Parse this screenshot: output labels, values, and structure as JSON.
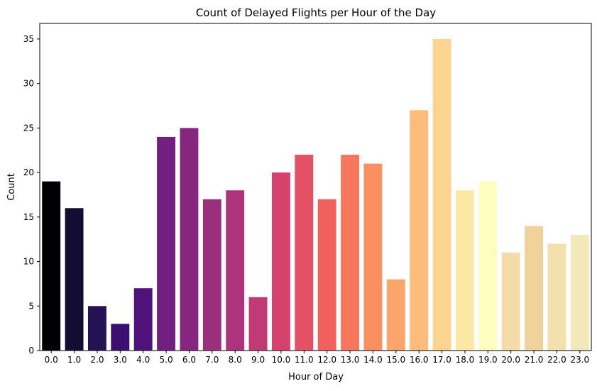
{
  "chart_data": {
    "type": "bar",
    "title": "Count of Delayed Flights per Hour of the Day",
    "xlabel": "Hour of Day",
    "ylabel": "Count",
    "categories": [
      "0.0",
      "1.0",
      "2.0",
      "3.0",
      "4.0",
      "5.0",
      "6.0",
      "7.0",
      "8.0",
      "9.0",
      "10.0",
      "11.0",
      "12.0",
      "13.0",
      "14.0",
      "15.0",
      "16.0",
      "17.0",
      "18.0",
      "19.0",
      "20.0",
      "21.0",
      "22.0",
      "23.0"
    ],
    "values": [
      19,
      16,
      5,
      3,
      7,
      24,
      25,
      17,
      18,
      6,
      20,
      22,
      17,
      22,
      21,
      8,
      27,
      35,
      18,
      19,
      11,
      14,
      12,
      13
    ],
    "ylim": [
      0,
      36.75
    ],
    "yticks": [
      0,
      5,
      10,
      15,
      20,
      25,
      30,
      35
    ],
    "grid": false,
    "colors": [
      "#000004",
      "#120d31",
      "#251255",
      "#3b0f70",
      "#4f127b",
      "#721f81",
      "#86267f",
      "#9a2f7c",
      "#ad347c",
      "#c03a76",
      "#d3436e",
      "#e45064",
      "#f0605d",
      "#f6785c",
      "#fa8f61",
      "#fca56b",
      "#fdbc7a",
      "#fdd390",
      "#fce8a5",
      "#fcfdbf",
      "#f3dca7",
      "#f0d39a",
      "#f2e1ad",
      "#f3e8b9"
    ]
  }
}
